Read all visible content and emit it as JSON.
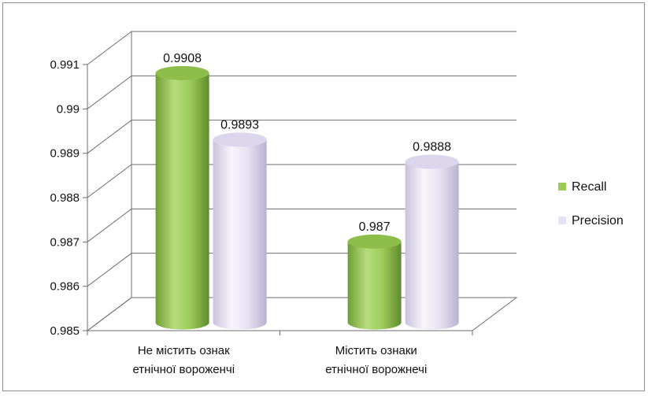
{
  "chart_data": {
    "type": "bar",
    "style": "3d-cylinder",
    "categories": [
      "Не містить ознак етнічної вороженчі",
      "Містить ознаки етнічної ворожнечі"
    ],
    "category_lines": [
      [
        "Не містить ознак",
        "етнічної вороженчі"
      ],
      [
        "Містить ознаки",
        "етнічної ворожнечі"
      ]
    ],
    "series": [
      {
        "name": "Recall",
        "values": [
          0.9908,
          0.987
        ],
        "labels": [
          "0.9908",
          "0.987"
        ],
        "color": "#9ccb5a"
      },
      {
        "name": "Precision",
        "values": [
          0.9893,
          0.9888
        ],
        "labels": [
          "0.9893",
          "0.9888"
        ],
        "color": "#e6e1f2"
      }
    ],
    "ylim": [
      0.985,
      0.991
    ],
    "yticks": [
      0.985,
      0.986,
      0.987,
      0.988,
      0.989,
      0.99,
      0.991
    ],
    "ytick_labels": [
      "0.985",
      "0.986",
      "0.987",
      "0.988",
      "0.989",
      "0.99",
      "0.991"
    ],
    "grid": true,
    "legend_position": "right"
  }
}
